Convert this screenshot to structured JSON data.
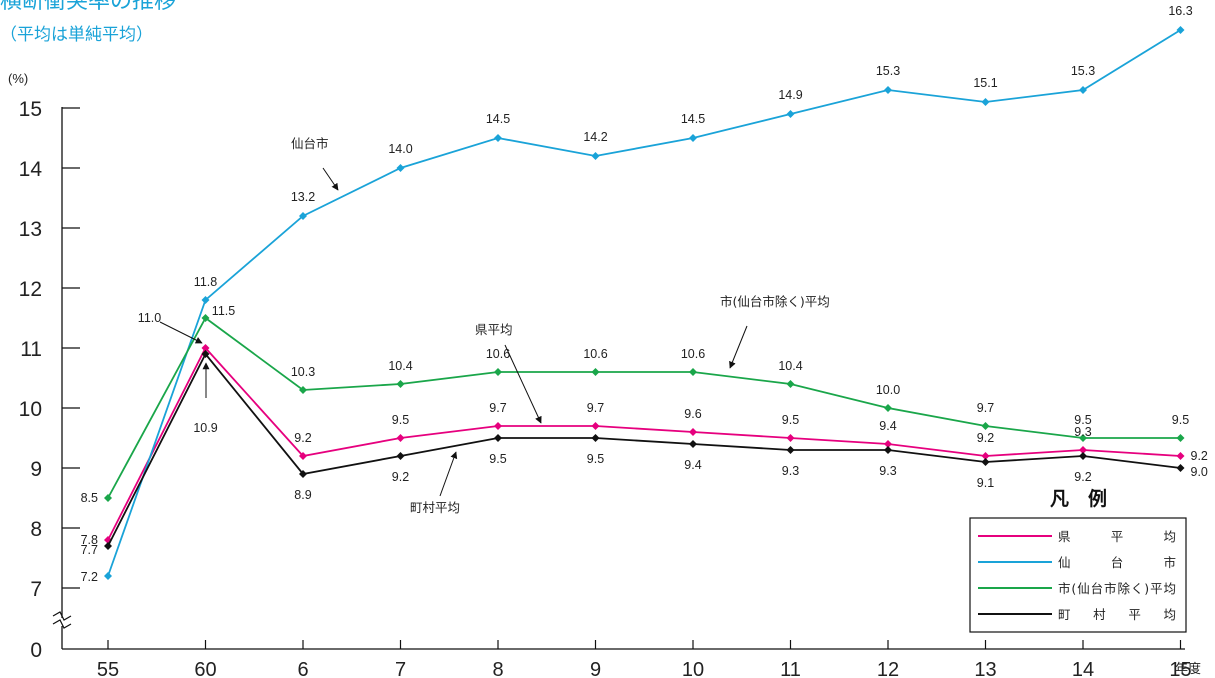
{
  "chart_data": {
    "type": "line",
    "title": "横断衝突率の推移",
    "subtitle": "（平均は単純平均）",
    "y_unit_label": "(%)",
    "x_unit_label": "年度",
    "categories": [
      "55",
      "60",
      "6",
      "7",
      "8",
      "9",
      "10",
      "11",
      "12",
      "13",
      "14",
      "15"
    ],
    "ylim": [
      7,
      15
    ],
    "y_ticks": [
      "0",
      "7",
      "8",
      "9",
      "10",
      "11",
      "12",
      "13",
      "14",
      "15"
    ],
    "axis_break": true,
    "grid": false,
    "legend_title": "凡　例",
    "legend_position": "bottom-right",
    "series": [
      {
        "key": "ken",
        "name": "県　　平　　均",
        "color": "#e6007e",
        "values": [
          7.8,
          11.0,
          9.2,
          9.5,
          9.7,
          9.7,
          9.6,
          9.5,
          9.4,
          9.2,
          9.3,
          9.2
        ]
      },
      {
        "key": "sendai",
        "name": "仙　　台　　市",
        "color": "#1aa3d8",
        "values": [
          7.2,
          11.8,
          13.2,
          14.0,
          14.5,
          14.2,
          14.5,
          14.9,
          15.3,
          15.1,
          15.3,
          16.3
        ]
      },
      {
        "key": "shi",
        "name": "市(仙台市除く)平均",
        "color": "#1aa64a",
        "values": [
          8.5,
          11.5,
          10.3,
          10.4,
          10.6,
          10.6,
          10.6,
          10.4,
          10.0,
          9.7,
          9.5,
          9.5
        ]
      },
      {
        "key": "choson",
        "name": "町　村　平　均",
        "color": "#111111",
        "values": [
          7.7,
          10.9,
          8.9,
          9.2,
          9.5,
          9.5,
          9.4,
          9.3,
          9.3,
          9.1,
          9.2,
          9.0
        ]
      }
    ],
    "annotations": [
      "仙台市",
      "市(仙台市除く)平均",
      "県平均",
      "町村平均"
    ]
  }
}
